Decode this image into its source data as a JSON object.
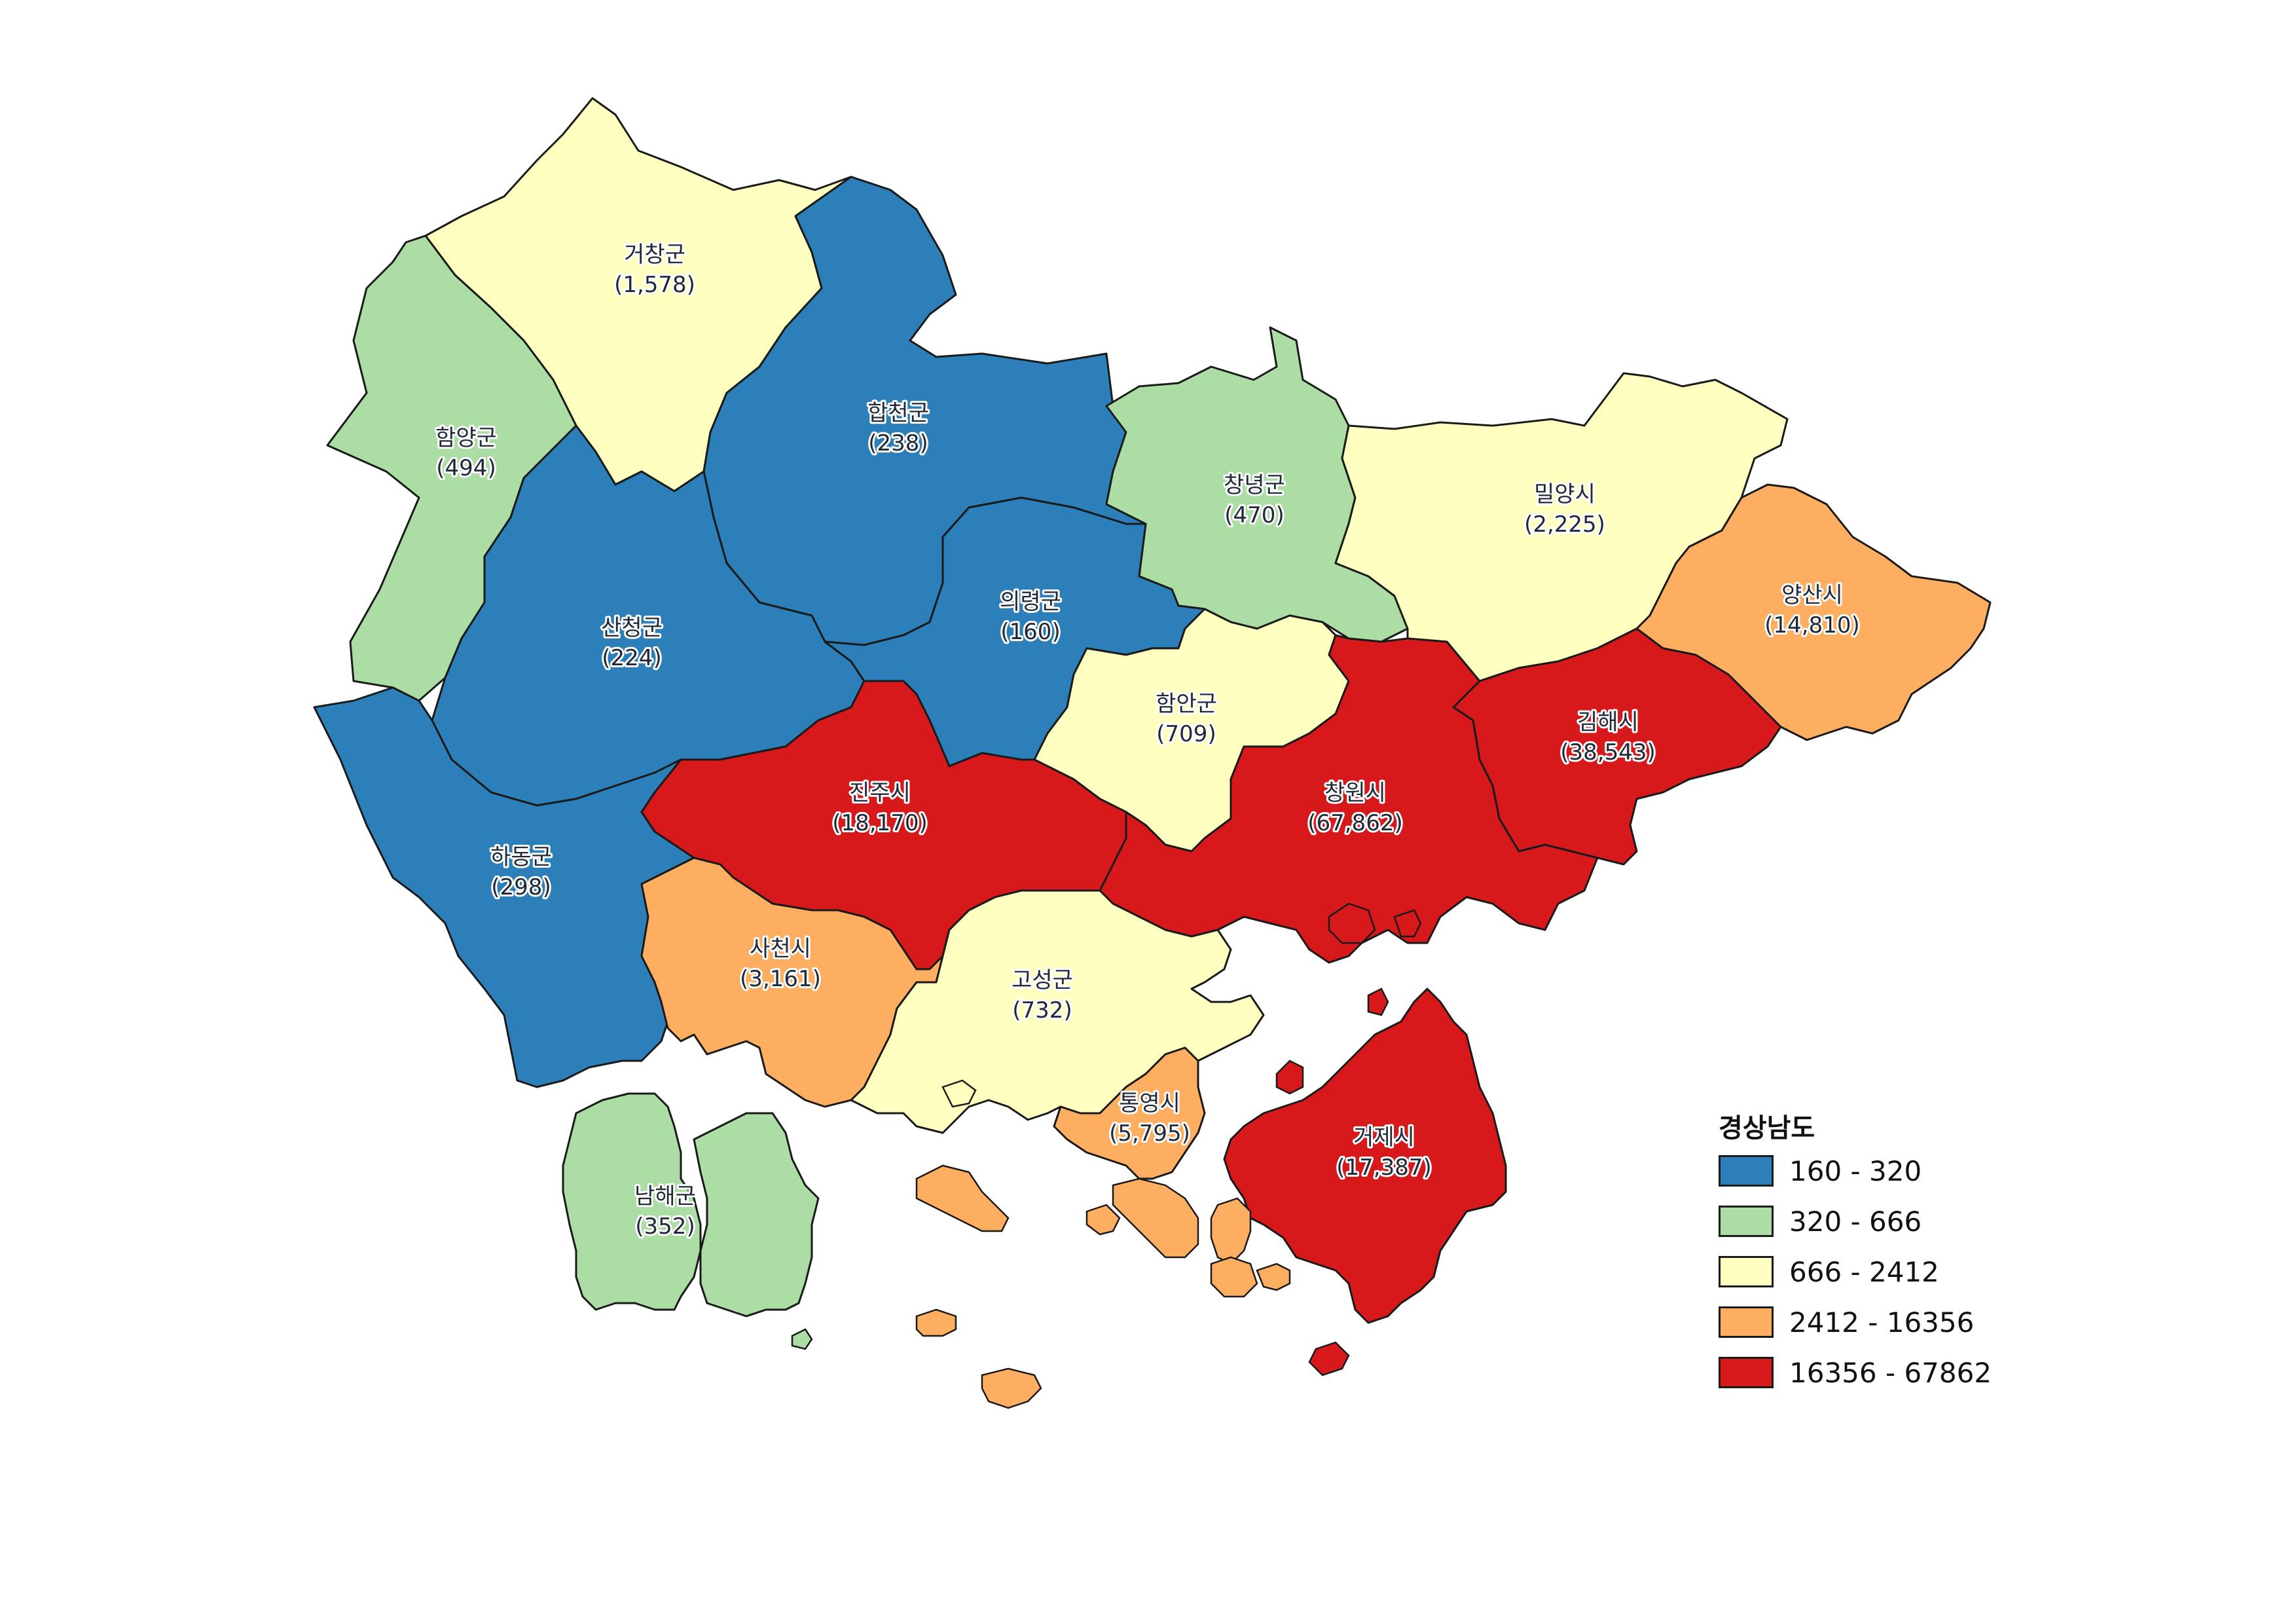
{
  "map_title": "경상남도",
  "colors": {
    "c1": "#2c7fb8",
    "c2": "#abdda4",
    "c3": "#ffffbf",
    "c4": "#fdae61",
    "c5": "#d7191c",
    "outline": "#1a1a1a"
  },
  "legend": {
    "title": "경상남도",
    "items": [
      {
        "label": "160 - 320",
        "color": "#2c7fb8"
      },
      {
        "label": "320 - 666",
        "color": "#abdda4"
      },
      {
        "label": "666 - 2412",
        "color": "#ffffbf"
      },
      {
        "label": "2412 - 16356",
        "color": "#fdae61"
      },
      {
        "label": "16356 - 67862",
        "color": "#d7191c"
      }
    ]
  },
  "regions": [
    {
      "id": "geochang",
      "name": "거창군",
      "value": "(1,578)",
      "class": "666 - 2412"
    },
    {
      "id": "hamyang",
      "name": "함양군",
      "value": "(494)",
      "class": "320 - 666"
    },
    {
      "id": "hapcheon",
      "name": "합천군",
      "value": "(238)",
      "class": "160 - 320"
    },
    {
      "id": "changnyeong",
      "name": "창녕군",
      "value": "(470)",
      "class": "320 - 666"
    },
    {
      "id": "miryang",
      "name": "밀양시",
      "value": "(2,225)",
      "class": "666 - 2412"
    },
    {
      "id": "yangsan",
      "name": "양산시",
      "value": "(14,810)",
      "class": "2412 - 16356"
    },
    {
      "id": "sancheong",
      "name": "산청군",
      "value": "(224)",
      "class": "160 - 320"
    },
    {
      "id": "uiryeong",
      "name": "의령군",
      "value": "(160)",
      "class": "160 - 320"
    },
    {
      "id": "haman",
      "name": "함안군",
      "value": "(709)",
      "class": "666 - 2412"
    },
    {
      "id": "gimhae",
      "name": "김해시",
      "value": "(38,543)",
      "class": "16356 - 67862"
    },
    {
      "id": "jinju",
      "name": "진주시",
      "value": "(18,170)",
      "class": "16356 - 67862"
    },
    {
      "id": "changwon",
      "name": "창원시",
      "value": "(67,862)",
      "class": "16356 - 67862"
    },
    {
      "id": "hadong",
      "name": "하동군",
      "value": "(298)",
      "class": "160 - 320"
    },
    {
      "id": "sacheon",
      "name": "사천시",
      "value": "(3,161)",
      "class": "2412 - 16356"
    },
    {
      "id": "goseong",
      "name": "고성군",
      "value": "(732)",
      "class": "666 - 2412"
    },
    {
      "id": "tongyeong",
      "name": "통영시",
      "value": "(5,795)",
      "class": "2412 - 16356"
    },
    {
      "id": "geoje",
      "name": "거제시",
      "value": "(17,387)",
      "class": "16356 - 67862"
    },
    {
      "id": "namhae",
      "name": "남해군",
      "value": "(352)",
      "class": "320 - 666"
    }
  ]
}
